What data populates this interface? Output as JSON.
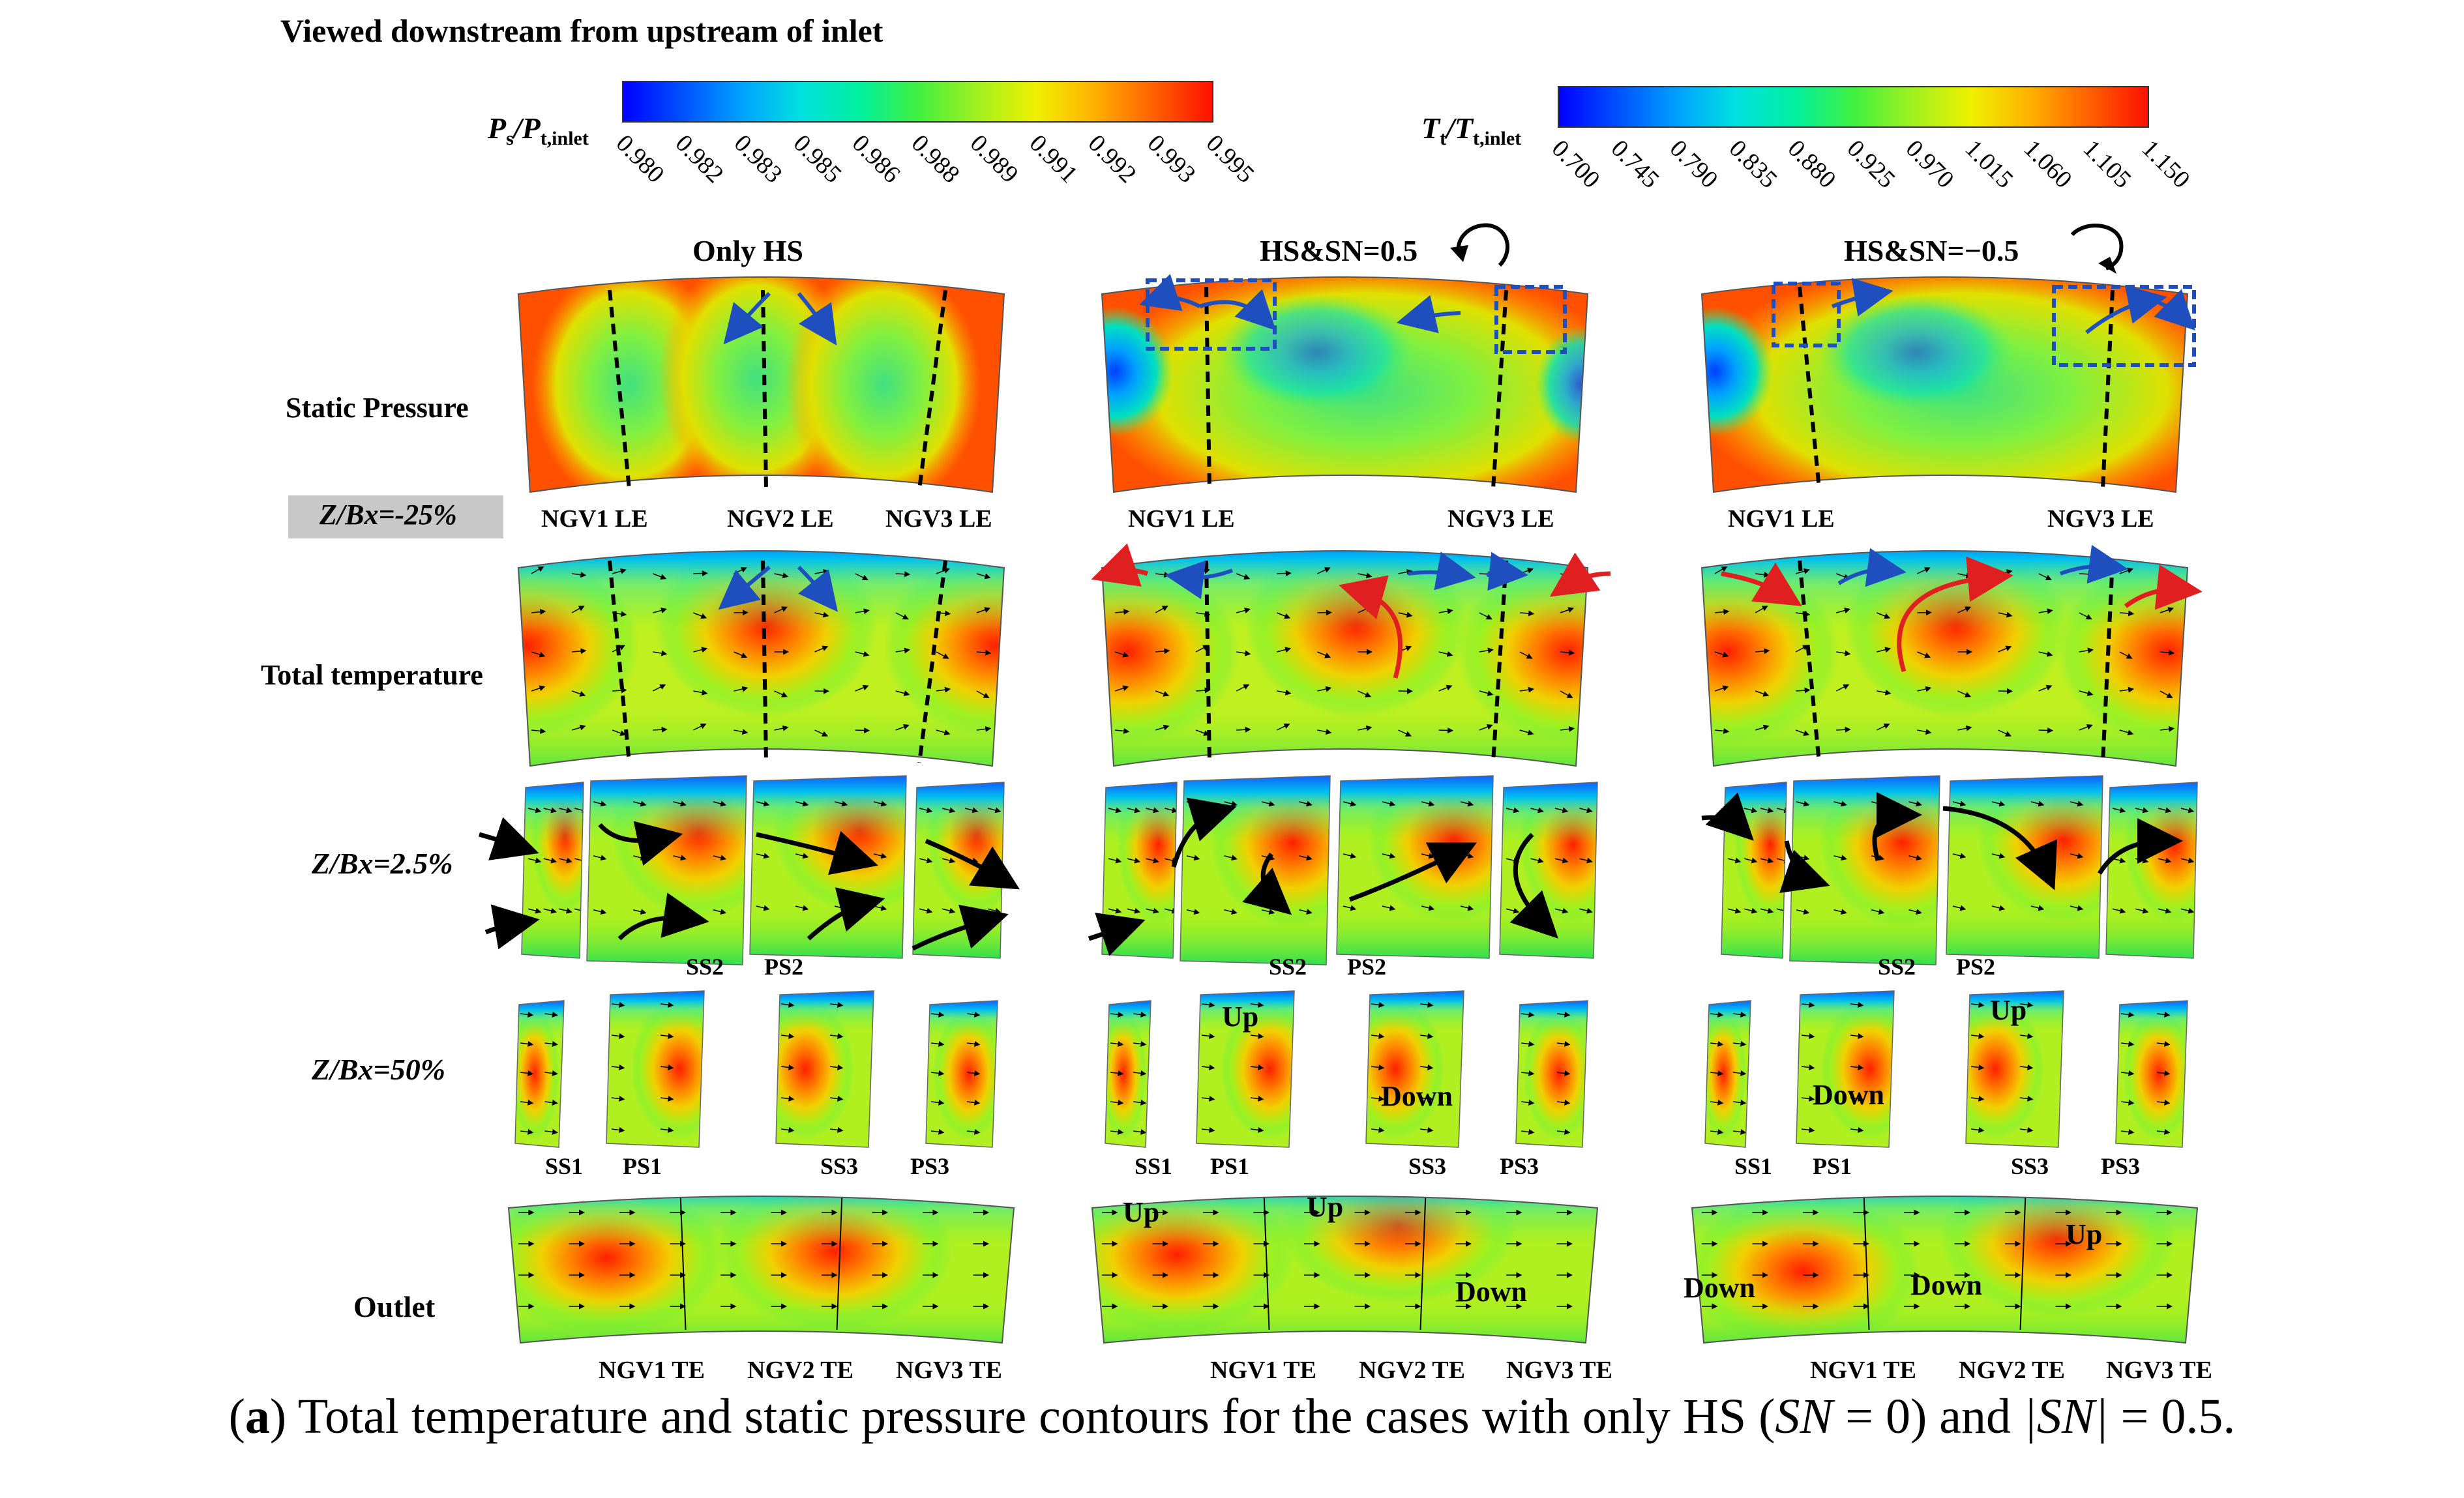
{
  "header": "Viewed downstream from upstream of inlet",
  "colorbars": {
    "static": {
      "label_main": "P",
      "label_sub": "s",
      "label_sep": "/P",
      "label_sub2": "t,inlet",
      "ticks": [
        "0.980",
        "0.982",
        "0.983",
        "0.985",
        "0.986",
        "0.988",
        "0.989",
        "0.991",
        "0.992",
        "0.993",
        "0.995"
      ],
      "range": [
        0.98,
        0.995
      ]
    },
    "temp": {
      "label_main": "T",
      "label_sub": "t",
      "label_sep": "/T",
      "label_sub2": "t,inlet",
      "ticks": [
        "0.700",
        "0.745",
        "0.790",
        "0.835",
        "0.880",
        "0.925",
        "0.970",
        "1.015",
        "1.060",
        "1.105",
        "1.150"
      ],
      "range": [
        0.7,
        1.15
      ]
    },
    "colors": [
      "#0000ff",
      "#0050ff",
      "#00a0ff",
      "#00e0e0",
      "#00f0a0",
      "#40f040",
      "#a0f020",
      "#f0f000",
      "#ffb000",
      "#ff6000",
      "#ff1000"
    ]
  },
  "cases": [
    {
      "title": "Only HS"
    },
    {
      "title": "HS&SN=0.5"
    },
    {
      "title": "HS&SN=−0.5"
    }
  ],
  "rows": {
    "static": "Static Pressure",
    "zbx_neg": "Z/Bx=-25%",
    "total": "Total temperature",
    "zbx_25": "Z/Bx=2.5%",
    "zbx_50": "Z/Bx=50%",
    "outlet": "Outlet"
  },
  "labels": {
    "le_case1": [
      "NGV1 LE",
      "NGV2 LE",
      "NGV3 LE"
    ],
    "le_case23": [
      "NGV1 LE",
      "NGV3 LE"
    ],
    "ss2": "SS2",
    "ps2": "PS2",
    "ss1": "SS1",
    "ps1": "PS1",
    "ss3": "SS3",
    "ps3": "PS3",
    "te": [
      "NGV1 TE",
      "NGV2 TE",
      "NGV3 TE"
    ],
    "up": "Up",
    "down": "Down"
  },
  "caption": {
    "bold": "a",
    "text_pre": " Total temperature and static pressure contours for the cases with only HS (",
    "sn1": "SN",
    "text_mid": " = 0) and ",
    "sn2": "|SN|",
    "text_end": " = 0.5."
  }
}
